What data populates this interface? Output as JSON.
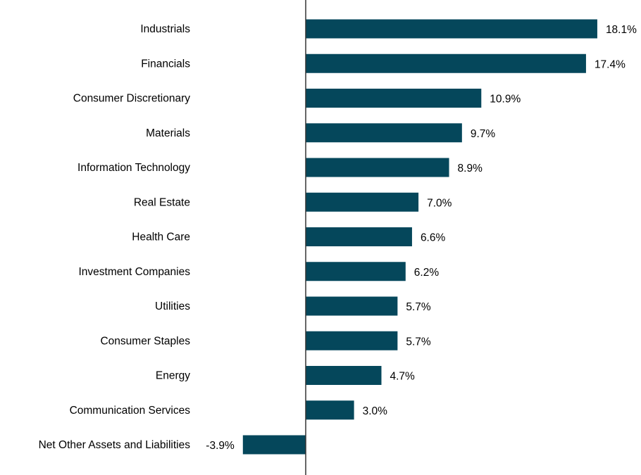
{
  "chart_data": {
    "type": "bar",
    "orientation": "horizontal",
    "title": "",
    "xlabel": "",
    "ylabel": "",
    "categories": [
      "Industrials",
      "Financials",
      "Consumer Discretionary",
      "Materials",
      "Information Technology",
      "Real Estate",
      "Health Care",
      "Investment Companies",
      "Utilities",
      "Consumer Staples",
      "Energy",
      "Communication Services",
      "Net Other Assets and Liabilities"
    ],
    "values": [
      18.1,
      17.4,
      10.9,
      9.7,
      8.9,
      7.0,
      6.6,
      6.2,
      5.7,
      5.7,
      4.7,
      3.0,
      -3.9
    ],
    "labels": [
      "18.1%",
      "17.4%",
      "10.9%",
      "9.7%",
      "8.9%",
      "7.0%",
      "6.6%",
      "6.2%",
      "5.7%",
      "5.7%",
      "4.7%",
      "3.0%",
      "-3.9%"
    ],
    "unit": "%",
    "grid": false,
    "legend": "none",
    "bar_color": "#05475b",
    "axis_color": "#333333"
  }
}
